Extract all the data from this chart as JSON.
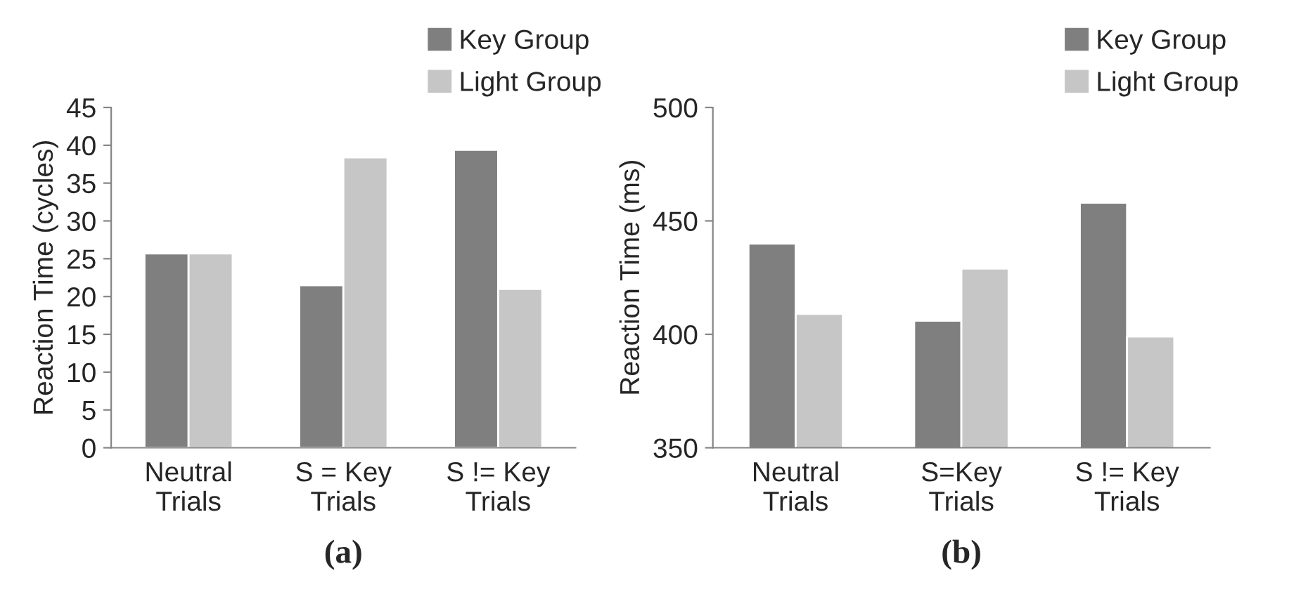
{
  "chart_data": [
    {
      "type": "bar",
      "xlabel": "(a)",
      "ylabel": "Reaction Time (cycles)",
      "categories": [
        "Neutral\nTrials",
        "S = Key\nTrials",
        "S != Key\nTrials"
      ],
      "series": [
        {
          "name": "Key Group",
          "color": "#7f7f7f",
          "values": [
            25.7,
            21.5,
            39.4
          ]
        },
        {
          "name": "Light Group",
          "color": "#c6c6c6",
          "values": [
            25.7,
            38.4,
            21.0
          ]
        }
      ],
      "ylim": [
        0,
        45
      ],
      "yticks": [
        0,
        5,
        10,
        15,
        20,
        25,
        30,
        35,
        40,
        45
      ],
      "grid": false,
      "legend": "top right"
    },
    {
      "type": "bar",
      "xlabel": "(b)",
      "ylabel": "Reaction Time (ms)",
      "categories": [
        "Neutral\nTrials",
        "S=Key\nTrials",
        "S != Key\nTrials"
      ],
      "series": [
        {
          "name": "Key Group",
          "color": "#7f7f7f",
          "values": [
            440,
            406,
            458
          ]
        },
        {
          "name": "Light Group",
          "color": "#c6c6c6",
          "values": [
            409,
            429,
            399
          ]
        }
      ],
      "ylim": [
        350,
        500
      ],
      "yticks": [
        350,
        400,
        450,
        500
      ],
      "grid": false,
      "legend": "top right"
    }
  ]
}
